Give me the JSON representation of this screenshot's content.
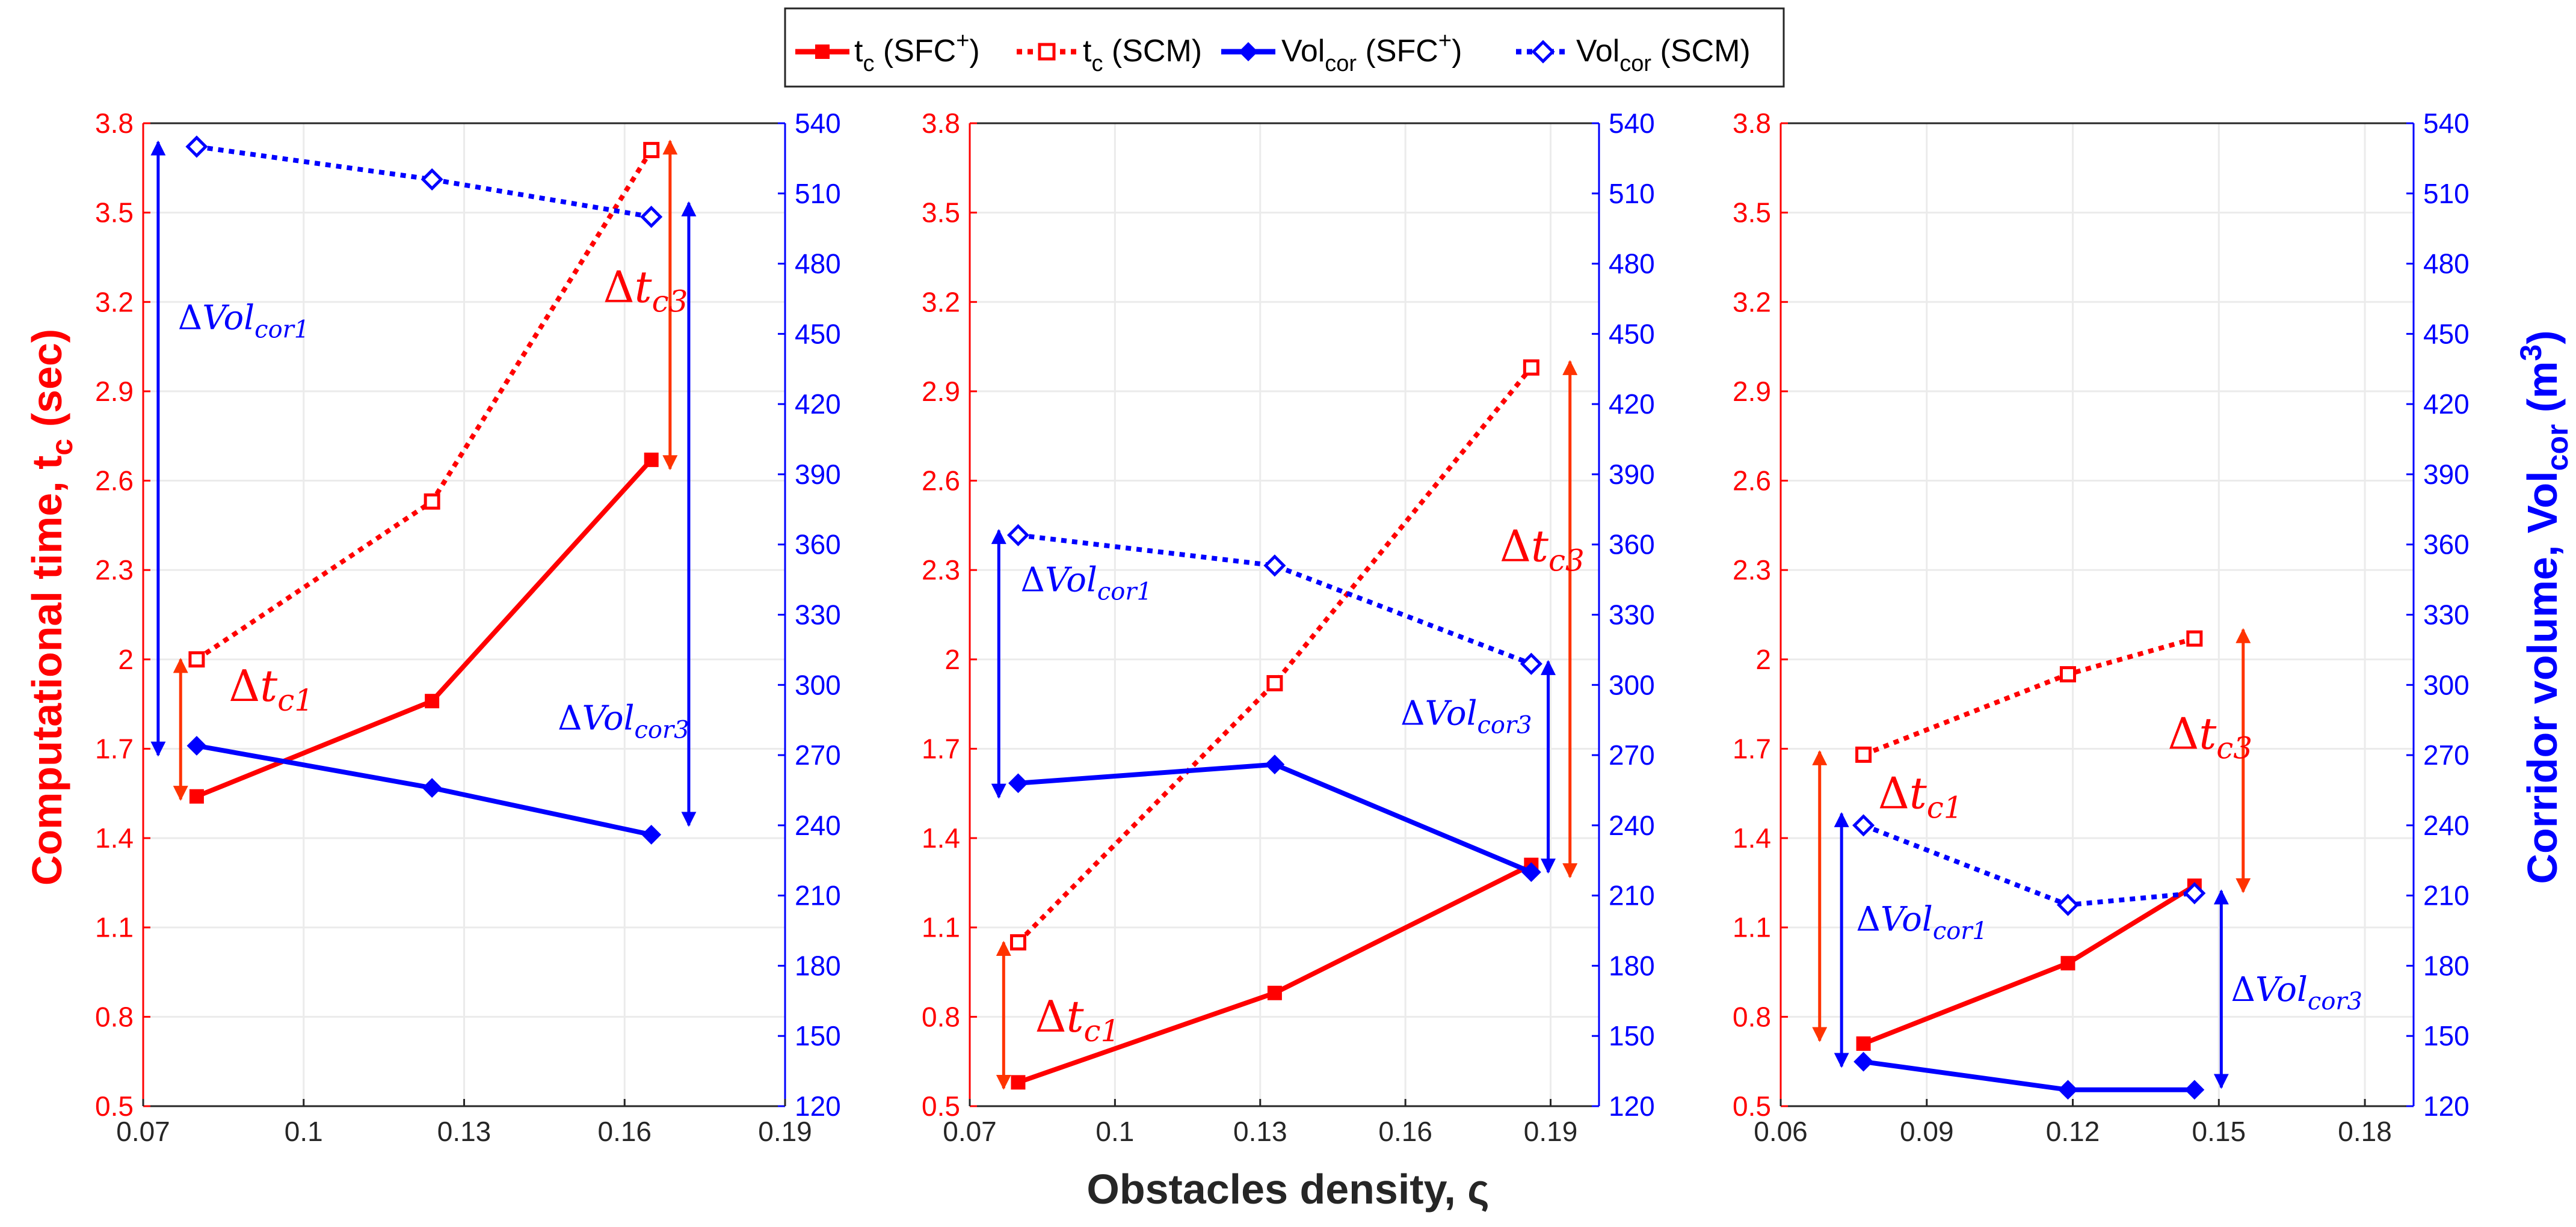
{
  "colors": {
    "red": "#ff0000",
    "blue": "#0000ff",
    "grid": "#ebebeb",
    "red_arrow": "#ff3300"
  },
  "legend": {
    "items": [
      {
        "base": "t",
        "sub": "c",
        "rest": " (SFC",
        "sup": "+",
        "close": ")",
        "color": "#ff0000",
        "style": "solid",
        "marker": "square"
      },
      {
        "base": "t",
        "sub": "c",
        "rest": " (SCM)",
        "sup": "",
        "close": "",
        "color": "#ff0000",
        "style": "dotted",
        "marker": "square"
      },
      {
        "base": "Vol",
        "sub": "cor",
        "rest": " (SFC",
        "sup": "+",
        "close": ")",
        "color": "#0000ff",
        "style": "solid",
        "marker": "diamond"
      },
      {
        "base": "Vol",
        "sub": "cor",
        "rest": " (SCM)",
        "sup": "",
        "close": "",
        "color": "#0000ff",
        "style": "dotted",
        "marker": "diamond"
      }
    ]
  },
  "axis_titles": {
    "left": {
      "base": "Computational time, t",
      "sub": "c",
      "rest": " (sec)"
    },
    "right": {
      "base": "Corridor volume, Vol",
      "sub": "cor",
      "rest": " (m",
      "sup": "3",
      "close": ")"
    },
    "x": {
      "text": "Obstacles density, ς"
    }
  },
  "chart_data": [
    {
      "type": "line",
      "xlabel": "Obstacles density, ς",
      "ylabel_left": "Computational time, t_c (sec)",
      "ylabel_right": "Corridor volume, Vol_cor (m^3)",
      "xlim": [
        0.07,
        0.19
      ],
      "xticks": [
        "0.07",
        "0.1",
        "0.13",
        "0.16",
        "0.19"
      ],
      "xtick_values": [
        0.07,
        0.1,
        0.13,
        0.16,
        0.19
      ],
      "ylim_left": [
        0.5,
        3.8
      ],
      "ylim_right": [
        120,
        540
      ],
      "series": [
        {
          "name": "t_c (SFC+)",
          "axis": "left",
          "x": [
            0.08,
            0.124,
            0.165
          ],
          "y": [
            1.54,
            1.86,
            2.67
          ]
        },
        {
          "name": "t_c (SCM)",
          "axis": "left",
          "x": [
            0.08,
            0.124,
            0.165
          ],
          "y": [
            2.0,
            2.53,
            3.71
          ]
        },
        {
          "name": "Vol_cor (SFC+)",
          "axis": "right",
          "x": [
            0.08,
            0.124,
            0.165
          ],
          "y": [
            274,
            256,
            236
          ]
        },
        {
          "name": "Vol_cor (SCM)",
          "axis": "right",
          "x": [
            0.08,
            0.124,
            0.165
          ],
          "y": [
            530,
            516,
            500
          ]
        }
      ],
      "annotations": [
        {
          "label": "Δ",
          "var": "t",
          "sub": "c1",
          "color": "#ff0000",
          "axis": "left",
          "x_arrow": 0.077,
          "y_from": 1.53,
          "y_to": 2.0,
          "x_text": 0.086,
          "y_text": 1.86
        },
        {
          "label": "Δ",
          "var": "t",
          "sub": "c3",
          "color": "#ff0000",
          "axis": "left",
          "x_arrow": 0.1685,
          "y_from": 2.64,
          "y_to": 3.74,
          "x_text": 0.156,
          "y_text": 3.2
        },
        {
          "label": "Δ",
          "var": "Vol",
          "sub": "cor1",
          "color": "#0000ff",
          "axis": "right",
          "x_arrow": 0.0728,
          "y_from": 270,
          "y_to": 532,
          "x_text": 0.0765,
          "y_text": 452
        },
        {
          "label": "Δ",
          "var": "Vol",
          "sub": "cor3",
          "color": "#0000ff",
          "axis": "right",
          "x_arrow": 0.172,
          "y_from": 240,
          "y_to": 506,
          "x_text": 0.1475,
          "y_text": 281
        }
      ]
    },
    {
      "type": "line",
      "xlabel": "Obstacles density, ς",
      "xlim": [
        0.07,
        0.2
      ],
      "xticks": [
        "0.07",
        "0.1",
        "0.13",
        "0.16",
        "0.19"
      ],
      "xtick_values": [
        0.07,
        0.1,
        0.13,
        0.16,
        0.19
      ],
      "ylim_left": [
        0.5,
        3.8
      ],
      "ylim_right": [
        120,
        540
      ],
      "series": [
        {
          "name": "t_c (SFC+)",
          "axis": "left",
          "x": [
            0.08,
            0.133,
            0.186
          ],
          "y": [
            0.58,
            0.88,
            1.31
          ]
        },
        {
          "name": "t_c (SCM)",
          "axis": "left",
          "x": [
            0.08,
            0.133,
            0.186
          ],
          "y": [
            1.05,
            1.92,
            2.98
          ]
        },
        {
          "name": "Vol_cor (SFC+)",
          "axis": "right",
          "x": [
            0.08,
            0.133,
            0.186
          ],
          "y": [
            258,
            266,
            220
          ]
        },
        {
          "name": "Vol_cor (SCM)",
          "axis": "right",
          "x": [
            0.08,
            0.133,
            0.186
          ],
          "y": [
            364,
            351,
            309
          ]
        }
      ],
      "annotations": [
        {
          "label": "Δ",
          "var": "t",
          "sub": "c1",
          "color": "#ff0000",
          "axis": "left",
          "x_arrow": 0.077,
          "y_from": 0.56,
          "y_to": 1.05,
          "x_text": 0.0835,
          "y_text": 0.75
        },
        {
          "label": "Δ",
          "var": "t",
          "sub": "c3",
          "color": "#ff0000",
          "axis": "left",
          "x_arrow": 0.194,
          "y_from": 1.27,
          "y_to": 3.0,
          "x_text": 0.1795,
          "y_text": 2.33
        },
        {
          "label": "Δ",
          "var": "Vol",
          "sub": "cor1",
          "color": "#0000ff",
          "axis": "right",
          "x_arrow": 0.076,
          "y_from": 252,
          "y_to": 366,
          "x_text": 0.0805,
          "y_text": 340
        },
        {
          "label": "Δ",
          "var": "Vol",
          "sub": "cor3",
          "color": "#0000ff",
          "axis": "right",
          "x_arrow": 0.1895,
          "y_from": 220,
          "y_to": 310,
          "x_text": 0.159,
          "y_text": 283
        }
      ]
    },
    {
      "type": "line",
      "xlabel": "Obstacles density, ς",
      "xlim": [
        0.06,
        0.19
      ],
      "xticks": [
        "0.06",
        "0.09",
        "0.12",
        "0.15",
        "0.18"
      ],
      "xtick_values": [
        0.06,
        0.09,
        0.12,
        0.15,
        0.18
      ],
      "ylim_left": [
        0.5,
        3.8
      ],
      "ylim_right": [
        120,
        540
      ],
      "series": [
        {
          "name": "t_c (SFC+)",
          "axis": "left",
          "x": [
            0.077,
            0.119,
            0.145
          ],
          "y": [
            0.71,
            0.98,
            1.24
          ]
        },
        {
          "name": "t_c (SCM)",
          "axis": "left",
          "x": [
            0.077,
            0.119,
            0.145
          ],
          "y": [
            1.68,
            1.95,
            2.07
          ]
        },
        {
          "name": "Vol_cor (SFC+)",
          "axis": "right",
          "x": [
            0.077,
            0.119,
            0.145
          ],
          "y": [
            139,
            127,
            127
          ]
        },
        {
          "name": "Vol_cor (SCM)",
          "axis": "right",
          "x": [
            0.077,
            0.119,
            0.145
          ],
          "y": [
            240,
            206,
            211
          ]
        }
      ],
      "annotations": [
        {
          "label": "Δ",
          "var": "t",
          "sub": "c1",
          "color": "#ff0000",
          "axis": "left",
          "x_arrow": 0.068,
          "y_from": 0.72,
          "y_to": 1.69,
          "x_text": 0.08,
          "y_text": 1.5
        },
        {
          "label": "Δ",
          "var": "t",
          "sub": "c3",
          "color": "#ff0000",
          "axis": "left",
          "x_arrow": 0.155,
          "y_from": 1.22,
          "y_to": 2.1,
          "x_text": 0.1395,
          "y_text": 1.7
        },
        {
          "label": "Δ",
          "var": "Vol",
          "sub": "cor1",
          "color": "#0000ff",
          "axis": "right",
          "x_arrow": 0.0725,
          "y_from": 137,
          "y_to": 245,
          "x_text": 0.0755,
          "y_text": 195
        },
        {
          "label": "Δ",
          "var": "Vol",
          "sub": "cor3",
          "color": "#0000ff",
          "axis": "right",
          "x_arrow": 0.1505,
          "y_from": 128,
          "y_to": 212,
          "x_text": 0.1525,
          "y_text": 165
        }
      ]
    }
  ]
}
